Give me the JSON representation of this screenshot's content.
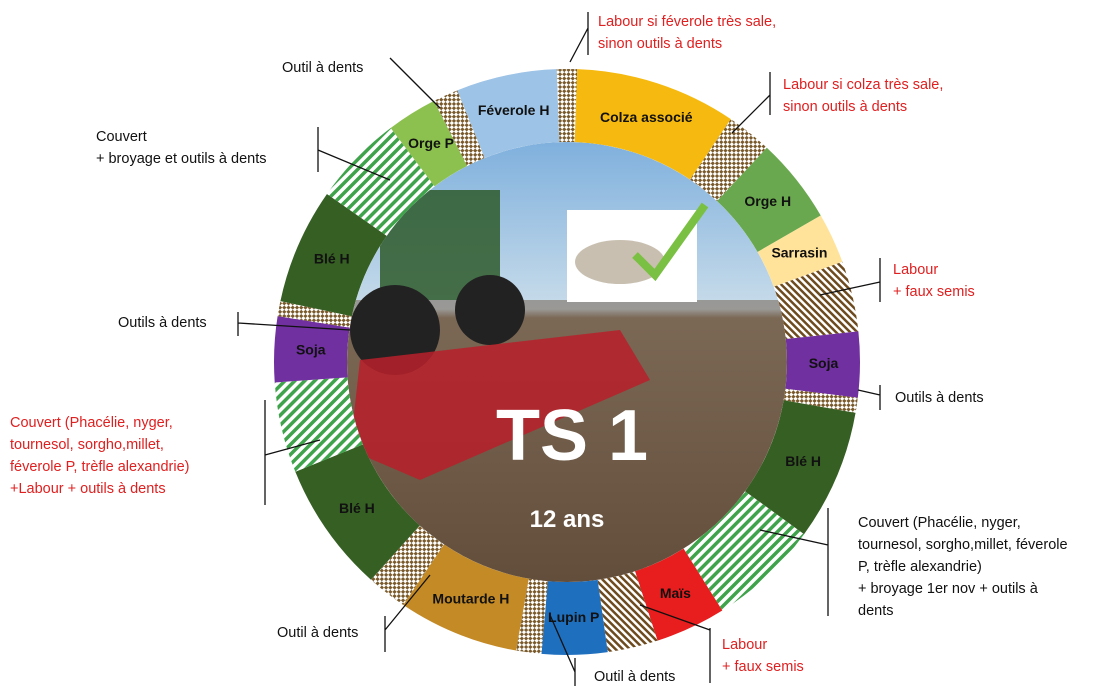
{
  "title": "TS 1",
  "subtitle": "12 ans",
  "segments": [
    "Féverole H",
    "Colza associé",
    "Orge H",
    "Sarrasin",
    "Soja",
    "Blé H",
    "Maïs",
    "Lupin P",
    "Moutarde H",
    "Blé H",
    "Soja",
    "Blé H",
    "Orge P"
  ],
  "annotations": [
    {
      "lines": [
        "Labour si féverole très sale,",
        "sinon outils à dents"
      ],
      "color": "#e02020"
    },
    {
      "lines": [
        "Outil à dents"
      ],
      "color": "#111111"
    },
    {
      "lines": [
        "Labour si colza très sale,",
        "sinon outils à dents"
      ],
      "color": "#e02020"
    },
    {
      "lines": [
        "Couvert",
        "+ broyage et outils à dents"
      ],
      "color": "#111111"
    },
    {
      "lines": [
        "Labour",
        "+ faux semis"
      ],
      "color": "#e02020"
    },
    {
      "lines": [
        "Outils à dents"
      ],
      "color": "#111111"
    },
    {
      "lines": [
        "Outils à dents"
      ],
      "color": "#111111"
    },
    {
      "lines": [
        "Couvert (Phacélie, nyger,",
        "tournesol, sorgho,millet,",
        "féverole P, trèfle alexandrie)",
        "+Labour + outils à dents"
      ],
      "color": "#e02020"
    },
    {
      "lines": [
        "Couvert (Phacélie, nyger,",
        "tournesol, sorgho,millet, féverole",
        "P, trèfle alexandrie)",
        "+ broyage 1er nov + outils à",
        "dents"
      ],
      "color": "#111111"
    },
    {
      "lines": [
        "Outil à dents"
      ],
      "color": "#111111"
    },
    {
      "lines": [
        "Labour",
        "+ faux semis"
      ],
      "color": "#e02020"
    },
    {
      "lines": [
        "Outil à dents"
      ],
      "color": "#111111"
    }
  ]
}
